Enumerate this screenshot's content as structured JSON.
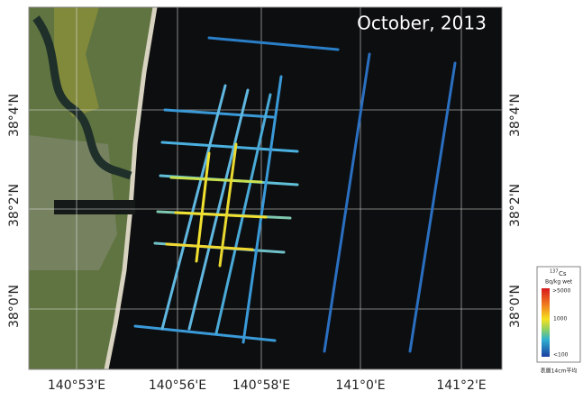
{
  "title": "October, 2013",
  "longitude_labels": [
    "140°53'E",
    "140°56'E",
    "140°58'E",
    "141°0'E",
    "141°2'E"
  ],
  "latitude_labels_left": [
    "38°4'N",
    "38°2'N",
    "38°0'N"
  ],
  "latitude_labels_right": [
    "38°4'N",
    "38°2'N",
    "38°0'N"
  ],
  "legend": {
    "mass_number": "137",
    "element": "Cs",
    "unit": "Bq/kg wet",
    "max": ">5000",
    "mid": "1000",
    "min": "<100"
  },
  "footnote": "表層14cm平均"
}
